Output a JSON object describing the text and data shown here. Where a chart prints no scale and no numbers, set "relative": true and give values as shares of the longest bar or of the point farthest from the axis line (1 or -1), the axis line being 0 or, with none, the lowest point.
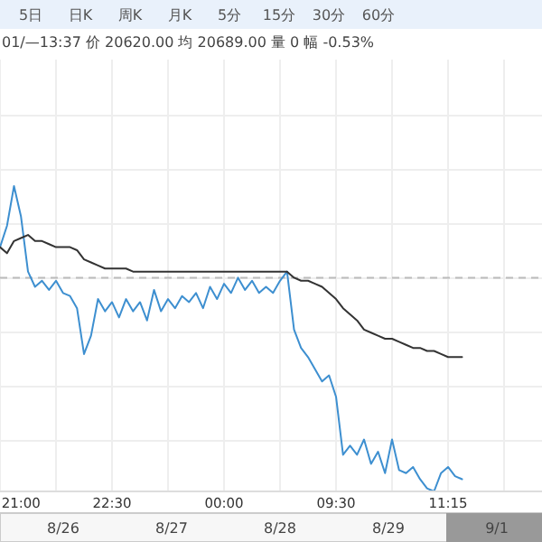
{
  "chart_data": {
    "type": "line",
    "relative": true,
    "subtitle": "01/—13:37 价 20620.00 均 20689.00 量 0 幅 -0.53%",
    "annotations": [
      "5日",
      "日K",
      "周K",
      "月K",
      "5分",
      "15分",
      "30分",
      "60分",
      "8/26",
      "8/27",
      "8/28",
      "8/29",
      "9/1"
    ],
    "categories": [
      null,
      null,
      null,
      "21:00",
      null,
      null,
      null,
      null,
      null,
      null,
      null,
      null,
      null,
      null,
      null,
      null,
      "22:30",
      null,
      null,
      null,
      null,
      null,
      null,
      null,
      null,
      null,
      null,
      null,
      null,
      null,
      null,
      null,
      "00:00",
      null,
      null,
      null,
      null,
      null,
      null,
      null,
      null,
      null,
      null,
      null,
      null,
      null,
      null,
      null,
      "09:30",
      null,
      null,
      null,
      null,
      null,
      null,
      null,
      null,
      null,
      null,
      null,
      null,
      null,
      null,
      null,
      "11:15",
      null,
      null,
      null,
      null,
      null,
      null,
      null,
      null,
      null,
      null,
      null,
      null,
      null
    ],
    "series": [
      {
        "color": "#3d8fd0",
        "values": [
          0.8,
          0.87,
          1,
          0.9,
          0.72,
          0.67,
          0.69,
          0.66,
          0.69,
          0.65,
          0.64,
          0.6,
          0.45,
          0.51,
          0.63,
          0.59,
          0.62,
          0.57,
          0.63,
          0.59,
          0.62,
          0.56,
          0.66,
          0.59,
          0.63,
          0.6,
          0.64,
          0.62,
          0.65,
          0.6,
          0.67,
          0.63,
          0.68,
          0.65,
          0.7,
          0.66,
          0.69,
          0.65,
          0.67,
          0.65,
          0.69,
          0.72,
          0.53,
          0.47,
          0.44,
          0.4,
          0.36,
          0.38,
          0.31,
          0.12,
          0.15,
          0.12,
          0.17,
          0.09,
          0.13,
          0.06,
          0.17,
          0.07,
          0.06,
          0.08,
          0.04,
          0.01,
          0,
          0.06,
          0.08,
          0.05,
          0.04,
          null,
          null,
          null,
          null,
          null,
          null,
          null,
          null,
          null,
          null,
          null
        ]
      },
      {
        "color": "#333333",
        "values": [
          0.8,
          0.78,
          0.82,
          0.83,
          0.84,
          0.82,
          0.82,
          0.81,
          0.8,
          0.8,
          0.8,
          0.79,
          0.76,
          0.75,
          0.74,
          0.73,
          0.73,
          0.73,
          0.73,
          0.72,
          0.72,
          0.72,
          0.72,
          0.72,
          0.72,
          0.72,
          0.72,
          0.72,
          0.72,
          0.72,
          0.72,
          0.72,
          0.72,
          0.72,
          0.72,
          0.72,
          0.72,
          0.72,
          0.72,
          0.72,
          0.72,
          0.72,
          0.7,
          0.69,
          0.69,
          0.68,
          0.67,
          0.65,
          0.63,
          0.6,
          0.58,
          0.56,
          0.53,
          0.52,
          0.51,
          0.5,
          0.5,
          0.49,
          0.48,
          0.47,
          0.47,
          0.46,
          0.46,
          0.45,
          0.44,
          0.44,
          0.44,
          null,
          null,
          null,
          null,
          null,
          null,
          null,
          null,
          null,
          null,
          null
        ]
      }
    ],
    "ref_lines": [
      {
        "axis": "y",
        "value": 0.7,
        "color": "#bbbbbb",
        "line_style": "dashed"
      }
    ],
    "grid": true
  }
}
